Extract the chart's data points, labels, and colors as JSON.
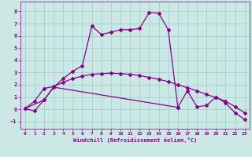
{
  "xlabel": "Windchill (Refroidissement éolien,°C)",
  "bg_color": "#cce8e4",
  "line_color": "#880088",
  "grid_color": "#99cccc",
  "xlim": [
    -0.5,
    23.5
  ],
  "ylim": [
    -1.6,
    8.8
  ],
  "yticks": [
    -1,
    0,
    1,
    2,
    3,
    4,
    5,
    6,
    7,
    8
  ],
  "xticks": [
    0,
    1,
    2,
    3,
    4,
    5,
    6,
    7,
    8,
    9,
    10,
    11,
    12,
    13,
    14,
    15,
    16,
    17,
    18,
    19,
    20,
    21,
    22,
    23
  ],
  "line1_x": [
    0,
    1,
    2,
    3,
    4,
    5,
    6,
    7,
    8,
    9,
    10,
    11,
    12,
    13,
    14,
    15,
    16
  ],
  "line1_y": [
    0.05,
    -0.15,
    0.75,
    1.8,
    2.5,
    3.1,
    3.55,
    6.8,
    6.1,
    6.3,
    6.5,
    6.5,
    6.6,
    7.9,
    7.85,
    6.5,
    0.15
  ],
  "line2_x": [
    0,
    2,
    3,
    16,
    17,
    18,
    19,
    20,
    21,
    22,
    23
  ],
  "line2_y": [
    0.05,
    0.75,
    1.8,
    0.15,
    1.5,
    0.2,
    0.3,
    1.0,
    0.5,
    -0.3,
    -0.85
  ],
  "line3_x": [
    0,
    1,
    2,
    3,
    4,
    5,
    6,
    7,
    8,
    9,
    10,
    11,
    12,
    13,
    14,
    15,
    16,
    17,
    18,
    19,
    20,
    21,
    22,
    23
  ],
  "line3_y": [
    0.05,
    0.65,
    1.7,
    1.85,
    2.2,
    2.5,
    2.7,
    2.85,
    2.9,
    2.95,
    2.9,
    2.85,
    2.75,
    2.6,
    2.45,
    2.25,
    2.0,
    1.75,
    1.5,
    1.2,
    0.95,
    0.65,
    0.2,
    -0.3
  ]
}
